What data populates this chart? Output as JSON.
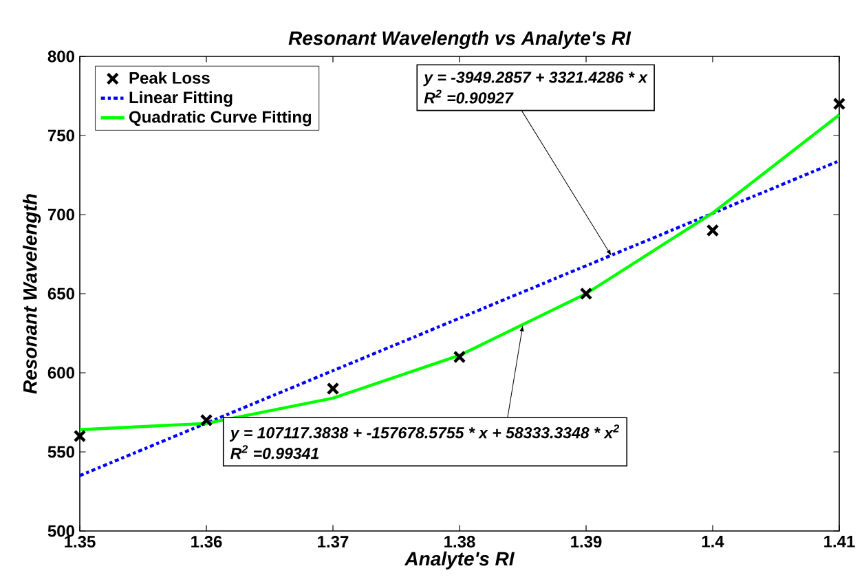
{
  "chart_data": {
    "type": "line",
    "title": "Resonant Wavelength vs Analyte's RI",
    "xlabel": "Analyte's RI",
    "ylabel": "Resonant Wavelength",
    "xlim": [
      1.35,
      1.41
    ],
    "xticks": [
      1.35,
      1.36,
      1.37,
      1.38,
      1.39,
      1.4,
      1.41
    ],
    "ylim": [
      500,
      800
    ],
    "yticks": [
      500,
      550,
      600,
      650,
      700,
      750,
      800
    ],
    "legend": "top left",
    "grid": false,
    "series": [
      {
        "name": "Peak Loss",
        "type": "scatter",
        "marker": "cross",
        "color": "#000000",
        "x": [
          1.35,
          1.36,
          1.37,
          1.38,
          1.39,
          1.4,
          1.41
        ],
        "values": [
          560,
          570,
          590,
          610,
          650,
          690,
          770
        ]
      },
      {
        "name": "Linear Fitting",
        "line_style": "dashed",
        "color": "#0000ff",
        "x": [
          1.35,
          1.41
        ],
        "values": [
          535,
          734
        ]
      },
      {
        "name": "Quadratic Curve Fitting",
        "line_style": "solid",
        "color": "#00ff00",
        "x": [
          1.35,
          1.36,
          1.37,
          1.38,
          1.39,
          1.4,
          1.41
        ],
        "values": [
          564,
          568,
          584,
          611,
          650,
          701,
          763
        ]
      }
    ],
    "annotations": [
      "y = -3949.2857 + 3321.4286 * x",
      {
        "text": "y = 107117.3838 + -157678.5755 * x + 58333.3348 * x$^{2}$",
        "x": 1.385,
        "y": 630
      },
      {
        "text": "R$^{2}$ =0.90927",
        "x": 1.392,
        "y": 674
      },
      "R$^{2}$ =0.99341"
    ]
  }
}
